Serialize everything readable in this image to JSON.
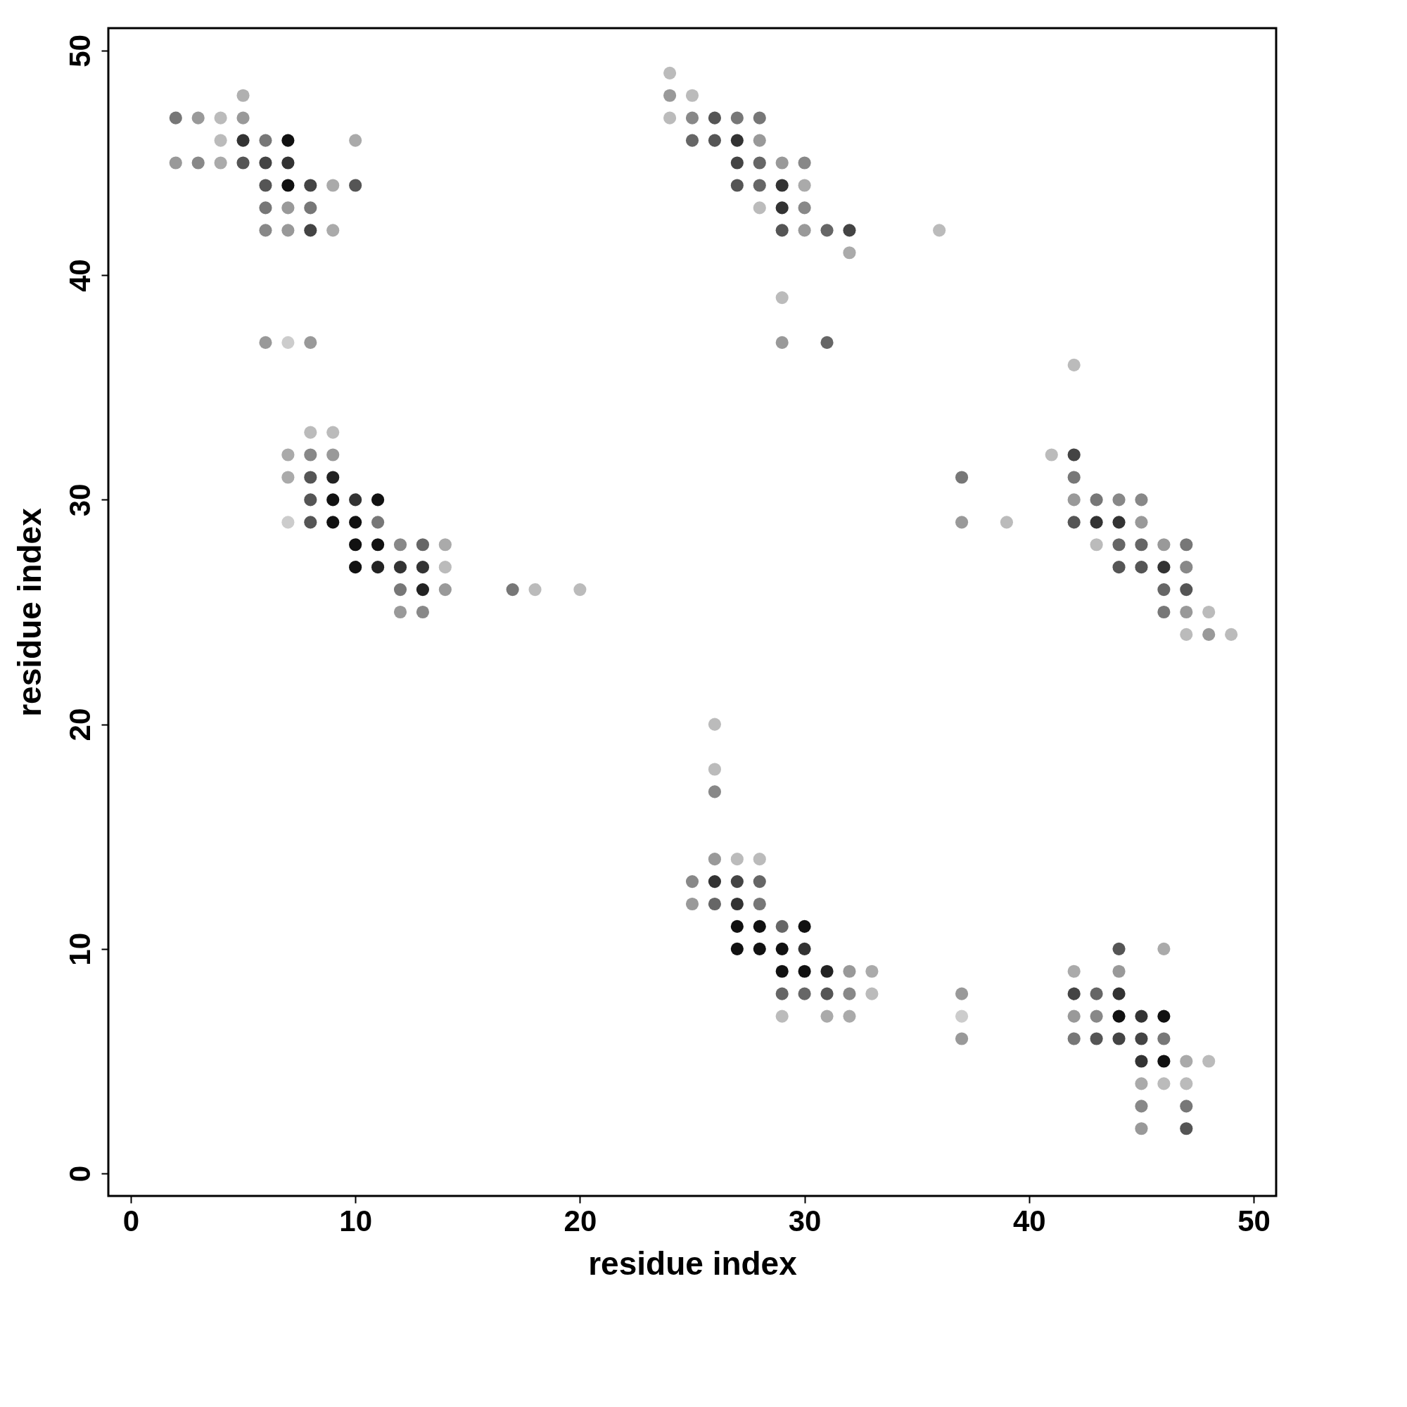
{
  "chart_data": {
    "type": "scatter",
    "xlabel": "residue index",
    "ylabel": "residue index",
    "xlim": [
      -1,
      51
    ],
    "ylim": [
      -1,
      51
    ],
    "xticks": [
      0,
      10,
      20,
      30,
      40,
      50
    ],
    "yticks": [
      0,
      10,
      20,
      30,
      40,
      50
    ],
    "grid": false,
    "marker": "circle",
    "x": [
      5,
      2,
      3,
      4,
      5,
      4,
      5,
      6,
      7,
      2,
      3,
      4,
      5,
      6,
      7,
      6,
      7,
      8,
      9,
      10,
      10,
      6,
      7,
      8,
      6,
      7,
      8,
      9,
      6,
      7,
      8,
      8,
      9,
      7,
      8,
      9,
      7,
      8,
      9,
      8,
      9,
      10,
      11,
      7,
      8,
      9,
      10,
      11,
      10,
      11,
      12,
      13,
      14,
      10,
      11,
      12,
      13,
      14,
      12,
      13,
      14,
      17,
      18,
      20,
      12,
      13,
      24,
      24,
      25,
      24,
      25,
      26,
      27,
      28,
      25,
      26,
      27,
      28,
      27,
      28,
      29,
      30,
      27,
      28,
      29,
      30,
      28,
      29,
      30,
      29,
      30,
      31,
      32,
      36,
      32,
      29,
      29,
      31,
      42,
      41,
      42,
      37,
      42,
      42,
      43,
      44,
      45,
      37,
      39,
      42,
      43,
      44,
      45,
      43,
      44,
      45,
      46,
      47,
      44,
      45,
      46,
      47,
      46,
      47,
      46,
      47,
      48,
      47,
      48,
      49,
      26,
      26,
      26,
      26,
      27,
      28,
      25,
      26,
      27,
      28,
      25,
      26,
      27,
      28,
      27,
      28,
      29,
      30,
      27,
      28,
      29,
      30,
      29,
      30,
      31,
      32,
      33,
      29,
      30,
      31,
      32,
      33,
      29,
      31,
      32,
      37,
      37,
      37,
      44,
      46,
      42,
      44,
      42,
      43,
      44,
      42,
      43,
      44,
      45,
      46,
      42,
      43,
      44,
      45,
      46,
      45,
      46,
      47,
      48,
      45,
      46,
      47,
      45,
      47,
      45,
      47
    ],
    "values": [
      48,
      47,
      47,
      47,
      47,
      46,
      46,
      46,
      46,
      45,
      45,
      45,
      45,
      45,
      45,
      44,
      44,
      44,
      44,
      44,
      46,
      43,
      43,
      43,
      42,
      42,
      42,
      42,
      37,
      37,
      37,
      33,
      33,
      32,
      32,
      32,
      31,
      31,
      31,
      30,
      30,
      30,
      30,
      29,
      29,
      29,
      29,
      29,
      28,
      28,
      28,
      28,
      28,
      27,
      27,
      27,
      27,
      27,
      26,
      26,
      26,
      26,
      26,
      26,
      25,
      25,
      49,
      48,
      48,
      47,
      47,
      47,
      47,
      47,
      46,
      46,
      46,
      46,
      45,
      45,
      45,
      45,
      44,
      44,
      44,
      44,
      43,
      43,
      43,
      42,
      42,
      42,
      42,
      42,
      41,
      39,
      37,
      37,
      36,
      32,
      32,
      31,
      31,
      30,
      30,
      30,
      30,
      29,
      29,
      29,
      29,
      29,
      29,
      28,
      28,
      28,
      28,
      28,
      27,
      27,
      27,
      27,
      26,
      26,
      25,
      25,
      25,
      24,
      24,
      24,
      20,
      18,
      17,
      14,
      14,
      14,
      13,
      13,
      13,
      13,
      12,
      12,
      12,
      12,
      11,
      11,
      11,
      11,
      10,
      10,
      10,
      10,
      9,
      9,
      9,
      9,
      9,
      8,
      8,
      8,
      8,
      8,
      7,
      7,
      7,
      8,
      7,
      6,
      10,
      10,
      9,
      9,
      8,
      8,
      8,
      7,
      7,
      7,
      7,
      7,
      6,
      6,
      6,
      6,
      6,
      5,
      5,
      5,
      5,
      4,
      4,
      4,
      3,
      3,
      2,
      2
    ],
    "colors": [
      "#b0b0b0",
      "#777777",
      "#999999",
      "#bbbbbb",
      "#999999",
      "#bbbbbb",
      "#333333",
      "#777777",
      "#111111",
      "#999999",
      "#888888",
      "#aaaaaa",
      "#555555",
      "#444444",
      "#333333",
      "#555555",
      "#111111",
      "#444444",
      "#aaaaaa",
      "#555555",
      "#aaaaaa",
      "#777777",
      "#999999",
      "#777777",
      "#888888",
      "#999999",
      "#444444",
      "#aaaaaa",
      "#999999",
      "#cccccc",
      "#999999",
      "#bbbbbb",
      "#bbbbbb",
      "#aaaaaa",
      "#888888",
      "#999999",
      "#aaaaaa",
      "#555555",
      "#222222",
      "#555555",
      "#111111",
      "#333333",
      "#111111",
      "#cccccc",
      "#555555",
      "#111111",
      "#111111",
      "#777777",
      "#111111",
      "#111111",
      "#888888",
      "#666666",
      "#aaaaaa",
      "#111111",
      "#222222",
      "#333333",
      "#333333",
      "#bbbbbb",
      "#777777",
      "#222222",
      "#999999",
      "#777777",
      "#bbbbbb",
      "#bbbbbb",
      "#999999",
      "#888888",
      "#bbbbbb",
      "#999999",
      "#bbbbbb",
      "#bbbbbb",
      "#888888",
      "#555555",
      "#777777",
      "#777777",
      "#666666",
      "#555555",
      "#333333",
      "#999999",
      "#444444",
      "#666666",
      "#999999",
      "#888888",
      "#555555",
      "#666666",
      "#333333",
      "#aaaaaa",
      "#bbbbbb",
      "#333333",
      "#888888",
      "#555555",
      "#999999",
      "#666666",
      "#444444",
      "#bbbbbb",
      "#aaaaaa",
      "#bbbbbb",
      "#999999",
      "#666666",
      "#bbbbbb",
      "#bbbbbb",
      "#444444",
      "#777777",
      "#777777",
      "#999999",
      "#777777",
      "#888888",
      "#888888",
      "#999999",
      "#bbbbbb",
      "#555555",
      "#333333",
      "#333333",
      "#999999",
      "#bbbbbb",
      "#666666",
      "#666666",
      "#999999",
      "#777777",
      "#555555",
      "#555555",
      "#333333",
      "#888888",
      "#666666",
      "#555555",
      "#777777",
      "#999999",
      "#bbbbbb",
      "#bbbbbb",
      "#999999",
      "#bbbbbb",
      "#bbbbbb",
      "#bbbbbb",
      "#888888",
      "#999999",
      "#bbbbbb",
      "#bbbbbb",
      "#888888",
      "#333333",
      "#444444",
      "#666666",
      "#999999",
      "#666666",
      "#333333",
      "#777777",
      "#111111",
      "#111111",
      "#666666",
      "#111111",
      "#111111",
      "#111111",
      "#111111",
      "#333333",
      "#111111",
      "#111111",
      "#222222",
      "#999999",
      "#aaaaaa",
      "#666666",
      "#666666",
      "#555555",
      "#888888",
      "#bbbbbb",
      "#bbbbbb",
      "#aaaaaa",
      "#aaaaaa",
      "#999999",
      "#cccccc",
      "#999999",
      "#555555",
      "#aaaaaa",
      "#aaaaaa",
      "#999999",
      "#444444",
      "#666666",
      "#333333",
      "#999999",
      "#888888",
      "#111111",
      "#333333",
      "#111111",
      "#777777",
      "#555555",
      "#444444",
      "#444444",
      "#777777",
      "#333333",
      "#111111",
      "#aaaaaa",
      "#bbbbbb",
      "#aaaaaa",
      "#bbbbbb",
      "#bbbbbb",
      "#888888",
      "#777777",
      "#999999",
      "#555555"
    ]
  }
}
